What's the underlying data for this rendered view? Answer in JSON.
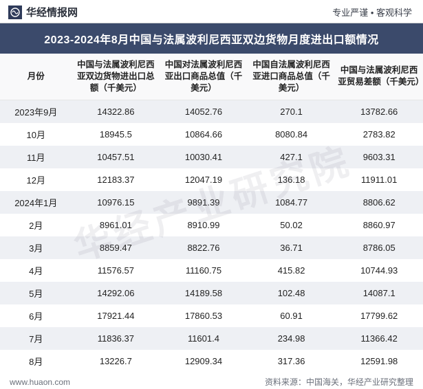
{
  "header": {
    "brand": "华经情报网",
    "tagline": "专业严谨 • 客观科学"
  },
  "title": "2023-2024年8月中国与法属波利尼西亚双边货物月度进出口额情况",
  "table": {
    "columns": [
      "月份",
      "中国与法属波利尼西亚双边货物进出口总额（千美元）",
      "中国对法属波利尼西亚出口商品总值（千美元）",
      "中国自法属波利尼西亚进口商品总值（千美元）",
      "中国与法属波利尼西亚贸易差额（千美元）"
    ],
    "rows": [
      [
        "2023年9月",
        "14322.86",
        "14052.76",
        "270.1",
        "13782.66"
      ],
      [
        "10月",
        "18945.5",
        "10864.66",
        "8080.84",
        "2783.82"
      ],
      [
        "11月",
        "10457.51",
        "10030.41",
        "427.1",
        "9603.31"
      ],
      [
        "12月",
        "12183.37",
        "12047.19",
        "136.18",
        "11911.01"
      ],
      [
        "2024年1月",
        "10976.15",
        "9891.39",
        "1084.77",
        "8806.62"
      ],
      [
        "2月",
        "8961.01",
        "8910.99",
        "50.02",
        "8860.97"
      ],
      [
        "3月",
        "8859.47",
        "8822.76",
        "36.71",
        "8786.05"
      ],
      [
        "4月",
        "11576.57",
        "11160.75",
        "415.82",
        "10744.93"
      ],
      [
        "5月",
        "14292.06",
        "14189.58",
        "102.48",
        "14087.1"
      ],
      [
        "6月",
        "17921.44",
        "17860.53",
        "60.91",
        "17799.62"
      ],
      [
        "7月",
        "11836.37",
        "11601.4",
        "234.98",
        "11366.42"
      ],
      [
        "8月",
        "13226.7",
        "12909.34",
        "317.36",
        "12591.98"
      ]
    ]
  },
  "footer": {
    "site": "www.huaon.com",
    "source": "资料来源：中国海关，华经产业研究整理"
  },
  "watermark": "华经产业研究院",
  "colors": {
    "title_bg": "#3b4a6b",
    "title_fg": "#ffffff",
    "row_stripe": "#eef0f4",
    "text": "#222222",
    "muted": "#6a6f7a"
  }
}
